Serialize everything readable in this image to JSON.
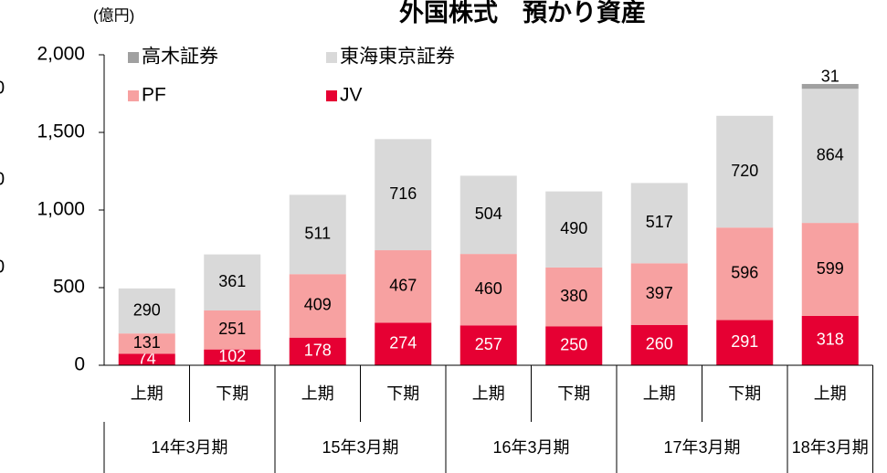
{
  "edge_labels": [
    "0",
    "0",
    "0"
  ],
  "chart_data": {
    "type": "stacked_bar",
    "title": "外国株式　預かり資産",
    "unit": "(億円)",
    "categories": [
      "上期",
      "下期",
      "上期",
      "下期",
      "上期",
      "下期",
      "上期",
      "下期",
      "上期"
    ],
    "groups": [
      "14年3月期",
      "15年3月期",
      "16年3月期",
      "17年3月期",
      "18年3月期"
    ],
    "series": [
      {
        "name": "JV",
        "color": "#e60033",
        "values": [
          74,
          102,
          178,
          274,
          257,
          250,
          260,
          291,
          318
        ]
      },
      {
        "name": "PF",
        "color": "#f7a1a1",
        "values": [
          131,
          251,
          409,
          467,
          460,
          380,
          397,
          596,
          599
        ]
      },
      {
        "name": "東海東京証券",
        "color": "#d9d9d9",
        "values": [
          290,
          361,
          511,
          716,
          504,
          490,
          517,
          720,
          864
        ]
      },
      {
        "name": "高木証券",
        "color": "#a0a0a0",
        "values": [
          null,
          null,
          null,
          null,
          null,
          null,
          null,
          null,
          31
        ]
      }
    ],
    "ylim": [
      0,
      2000
    ],
    "yticks": [
      0,
      500,
      {
        "value": 1000,
        "label": "1,000"
      },
      {
        "value": 1500,
        "label": "1,500"
      },
      {
        "value": 2000,
        "label": "2,000"
      }
    ],
    "grid": false
  }
}
